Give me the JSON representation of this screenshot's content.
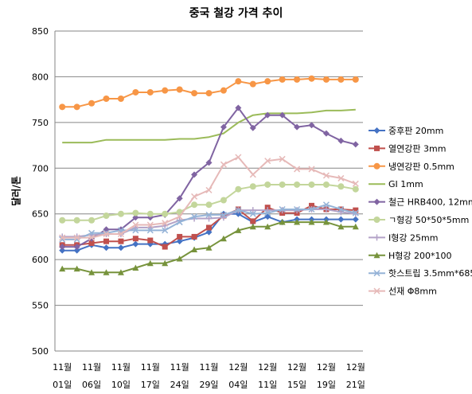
{
  "chart_data": {
    "type": "line",
    "title": "중국 철강 가격 추이",
    "ylabel": "달러/톤",
    "xlabel": "",
    "ylim": [
      500,
      850
    ],
    "yticks": [
      500,
      550,
      600,
      650,
      700,
      750,
      800,
      850
    ],
    "grid": true,
    "legend_position": "right",
    "categories": [
      "11월 01일",
      "",
      "11월 06일",
      "",
      "11월 10일",
      "",
      "11월 17일",
      "",
      "11월 24일",
      "",
      "11월 29일",
      "",
      "12월 04일",
      "",
      "12월 11일",
      "",
      "12월 15일",
      "",
      "12월 19일",
      "",
      "12월 21일"
    ],
    "x_tick_labels": [
      {
        "month": "11월",
        "day": "01일"
      },
      {
        "month": "11월",
        "day": "06일"
      },
      {
        "month": "11월",
        "day": "10일"
      },
      {
        "month": "11월",
        "day": "17일"
      },
      {
        "month": "11월",
        "day": "24일"
      },
      {
        "month": "11월",
        "day": "29일"
      },
      {
        "month": "12월",
        "day": "04일"
      },
      {
        "month": "12월",
        "day": "11일"
      },
      {
        "month": "12월",
        "day": "15일"
      },
      {
        "month": "12월",
        "day": "19일"
      },
      {
        "month": "12월",
        "day": "21일"
      }
    ],
    "series": [
      {
        "name": "중후판 20mm",
        "color": "#4472C4",
        "marker": "diamond",
        "values": [
          610,
          610,
          616,
          613,
          613,
          617,
          617,
          617,
          620,
          624,
          630,
          650,
          650,
          641,
          647,
          641,
          644,
          644,
          644,
          644,
          644
        ]
      },
      {
        "name": "열연강판 3mm",
        "color": "#C0504D",
        "marker": "square",
        "values": [
          616,
          616,
          618,
          620,
          620,
          623,
          621,
          614,
          625,
          625,
          635,
          648,
          655,
          642,
          657,
          651,
          651,
          659,
          655,
          655,
          654
        ]
      },
      {
        "name": "냉연강판 0.5mm",
        "color": "#F79646",
        "marker": "circle",
        "values": [
          767,
          767,
          771,
          776,
          776,
          783,
          783,
          785,
          786,
          782,
          782,
          785,
          795,
          792,
          795,
          797,
          797,
          798,
          797,
          797,
          797
        ]
      },
      {
        "name": "GI 1mm",
        "color": "#9BBB59",
        "marker": "none",
        "values": [
          728,
          728,
          728,
          731,
          731,
          731,
          731,
          731,
          732,
          732,
          734,
          738,
          750,
          758,
          760,
          760,
          760,
          761,
          763,
          763,
          764
        ]
      },
      {
        "name": "철근 HRB400, 12mm",
        "color": "#8064A2",
        "marker": "diamond",
        "values": [
          614,
          614,
          623,
          633,
          633,
          646,
          646,
          649,
          667,
          693,
          706,
          745,
          766,
          744,
          758,
          758,
          745,
          747,
          738,
          730,
          726
        ]
      },
      {
        "name": "ㄱ형강 50*50*5mm",
        "color": "#C3D69B",
        "marker": "circle",
        "values": [
          643,
          643,
          643,
          648,
          650,
          651,
          650,
          650,
          652,
          660,
          660,
          665,
          677,
          680,
          682,
          682,
          682,
          682,
          682,
          680,
          677
        ]
      },
      {
        "name": "I형강 25mm",
        "color": "#B3A2C7",
        "marker": "plus",
        "values": [
          625,
          625,
          627,
          628,
          628,
          635,
          635,
          637,
          643,
          645,
          645,
          646,
          654,
          654,
          654,
          654,
          654,
          655,
          655,
          652,
          650
        ]
      },
      {
        "name": "H형강 200*100",
        "color": "#77933C",
        "marker": "triangle",
        "values": [
          590,
          590,
          586,
          586,
          586,
          591,
          596,
          596,
          601,
          611,
          613,
          623,
          632,
          636,
          636,
          641,
          641,
          641,
          641,
          636,
          636
        ]
      },
      {
        "name": "핫스트립 3.5mm*685",
        "color": "#95B3D7",
        "marker": "x",
        "values": [
          622,
          622,
          629,
          629,
          632,
          632,
          632,
          632,
          641,
          647,
          649,
          649,
          654,
          650,
          651,
          655,
          655,
          655,
          660,
          655,
          651
        ]
      },
      {
        "name": "선재 Φ8mm",
        "color": "#E6B9B8",
        "marker": "x",
        "values": [
          624,
          624,
          624,
          628,
          628,
          638,
          638,
          640,
          647,
          669,
          676,
          704,
          712,
          693,
          708,
          710,
          699,
          699,
          692,
          689,
          683
        ]
      }
    ]
  }
}
